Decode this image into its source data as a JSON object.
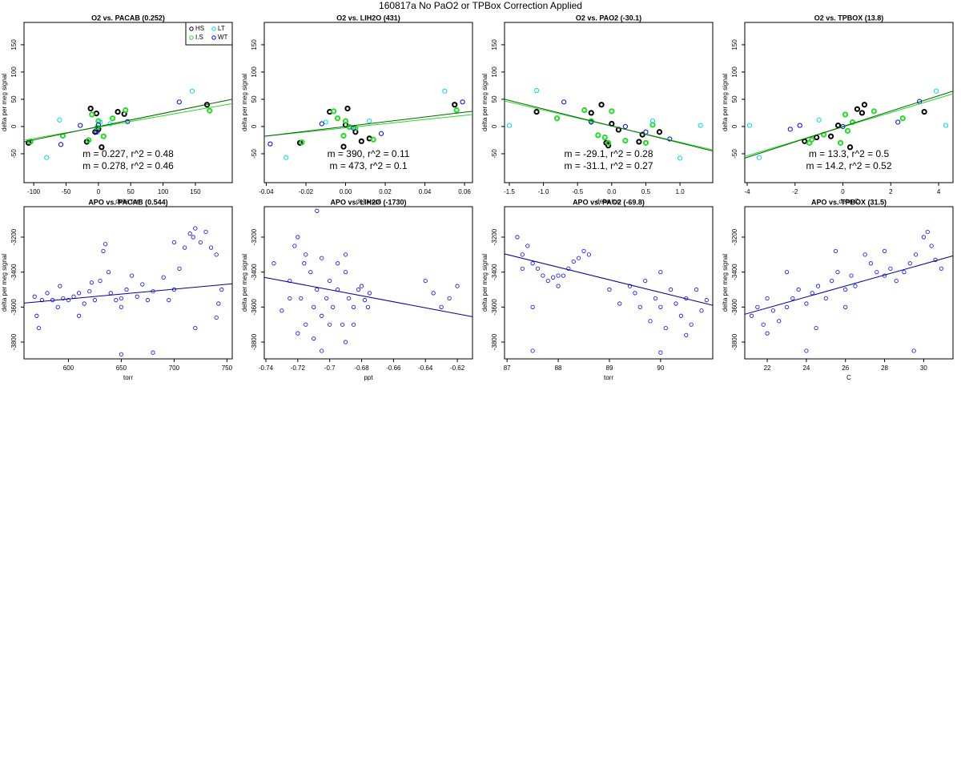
{
  "title": "160817a   No PaO2 or TPBox Correction Applied",
  "chart_data": [
    {
      "type": "scatter",
      "title": "O2 vs. PACAB (0.252)",
      "x_label": "delta torr",
      "y_label": "delta per meg signal",
      "xlim": [
        -115,
        207
      ],
      "ylim": [
        -103,
        191
      ],
      "xticks": [
        -100,
        -50,
        0,
        50,
        100,
        150
      ],
      "yticks": [
        -50,
        0,
        50,
        100,
        150
      ],
      "legend": "top-right",
      "series": [
        {
          "name": "HS",
          "color": "#000000",
          "x": [
            -108,
            -12,
            -3,
            -5,
            5,
            30,
            40,
            168,
            -18,
            0
          ],
          "values": [
            -30,
            33,
            24,
            -10,
            -38,
            27,
            23,
            40,
            -28,
            -5
          ]
        },
        {
          "name": "I.S",
          "color": "#22dd22",
          "x": [
            -105,
            -55,
            -10,
            0,
            -2,
            8,
            22,
            42,
            172,
            -15
          ],
          "values": [
            -28,
            -17,
            22,
            10,
            -2,
            -18,
            15,
            30,
            29,
            -25
          ]
        },
        {
          "name": "LT",
          "color": "#00dddd",
          "x": [
            -60,
            -80,
            3,
            145,
            18
          ],
          "values": [
            12,
            -57,
            8,
            65,
            5
          ]
        },
        {
          "name": "WT",
          "color": "#0000ff",
          "x": [
            -58,
            -28,
            0,
            45,
            125,
            -2
          ],
          "values": [
            -33,
            2,
            3,
            9,
            45,
            -10
          ]
        }
      ],
      "fits": [
        {
          "color": "#22dd22",
          "x": [
            -115,
            207
          ],
          "values": [
            -25,
            42
          ]
        },
        {
          "color": "#006400",
          "x": [
            -115,
            207
          ],
          "values": [
            -28,
            50
          ]
        }
      ],
      "annotations": [
        {
          "text": "m = 0.227, r^2 = 0.48",
          "color": "#22dd22"
        },
        {
          "text": "m = 0.278, r^2 = 0.46",
          "color": "#006400"
        }
      ]
    },
    {
      "type": "scatter",
      "title": "O2 vs. LIH2O (431)",
      "x_label": "delta ppt",
      "y_label": "delta per meg signal",
      "xlim": [
        -0.041,
        0.064
      ],
      "ylim": [
        -103,
        191
      ],
      "xticks": [
        -0.04,
        -0.02,
        {
          "value": 0,
          "label": "0.00"
        },
        0.02,
        0.04,
        0.06
      ],
      "yticks": [
        -50,
        0,
        50,
        100,
        150
      ],
      "series": [
        {
          "color": "#000000",
          "x": [
            -0.023,
            -0.008,
            0.001,
            0.0,
            0.005,
            0.012,
            0.055,
            -0.001,
            0.008
          ],
          "values": [
            -30,
            27,
            33,
            3,
            -10,
            -22,
            40,
            -37,
            -27
          ]
        },
        {
          "color": "#22dd22",
          "x": [
            -0.022,
            -0.006,
            -0.004,
            0.0,
            -0.001,
            0.005,
            0.014,
            0.056,
            0.002
          ],
          "values": [
            -29,
            28,
            15,
            10,
            -17,
            -3,
            -24,
            30,
            -1
          ]
        },
        {
          "color": "#00dddd",
          "x": [
            -0.01,
            -0.03,
            0.012,
            0.05
          ],
          "values": [
            8,
            -57,
            10,
            65
          ]
        },
        {
          "color": "#0000ff",
          "x": [
            -0.038,
            0.004,
            -0.012,
            0.018,
            0.059
          ],
          "values": [
            -32,
            -3,
            5,
            -13,
            45
          ]
        }
      ],
      "fits": [
        {
          "color": "#22dd22",
          "x": [
            -0.041,
            0.064
          ],
          "values": [
            -18,
            22
          ]
        },
        {
          "color": "#006400",
          "x": [
            -0.041,
            0.064
          ],
          "values": [
            -18,
            28
          ]
        }
      ],
      "annotations": [
        {
          "text": "m = 390, r^2 = 0.11",
          "color": "#22dd22"
        },
        {
          "text": "m = 473, r^2 = 0.1",
          "color": "#006400"
        }
      ]
    },
    {
      "type": "scatter",
      "title": "O2 vs. PAO2 (-30.1)",
      "x_label": "delta torr",
      "y_label": "delta per meg signal",
      "xlim": [
        -1.57,
        1.48
      ],
      "ylim": [
        -103,
        191
      ],
      "xticks": [
        -1.5,
        {
          "value": -1,
          "label": "-1.0"
        },
        -0.5,
        {
          "value": 0,
          "label": "0.0"
        },
        0.5,
        {
          "value": 1,
          "label": "1.0"
        }
      ],
      "yticks": [
        -50,
        0,
        50,
        100,
        150
      ],
      "series": [
        {
          "color": "#000000",
          "x": [
            -1.1,
            -0.3,
            -0.15,
            -0.08,
            0.0,
            0.1,
            0.45,
            0.4,
            0.7,
            -0.05
          ],
          "values": [
            27,
            25,
            40,
            -30,
            5,
            -6,
            -15,
            -28,
            -10,
            -35
          ]
        },
        {
          "color": "#22dd22",
          "x": [
            -0.8,
            -0.4,
            -0.3,
            -0.1,
            -0.05,
            0.2,
            0.5,
            0.6,
            -0.2,
            0.0
          ],
          "values": [
            15,
            30,
            10,
            -20,
            -30,
            -26,
            -30,
            3,
            -16,
            28
          ]
        },
        {
          "color": "#00dddd",
          "x": [
            -1.5,
            -1.1,
            0.6,
            1.3,
            1.0
          ],
          "values": [
            2,
            66,
            10,
            2,
            -58
          ]
        },
        {
          "color": "#0000ff",
          "x": [
            -0.7,
            -0.3,
            0.2,
            0.85,
            0.5
          ],
          "values": [
            45,
            8,
            0,
            -23,
            -10
          ]
        }
      ],
      "fits": [
        {
          "color": "#22dd22",
          "x": [
            -1.57,
            1.48
          ],
          "values": [
            47,
            -43
          ]
        },
        {
          "color": "#006400",
          "x": [
            -1.57,
            1.48
          ],
          "values": [
            50,
            -45
          ]
        }
      ],
      "annotations": [
        {
          "text": "m = -29.1, r^2 = 0.28",
          "color": "#22dd22"
        },
        {
          "text": "m = -31.1, r^2 = 0.27",
          "color": "#006400"
        }
      ]
    },
    {
      "type": "scatter",
      "title": "O2 vs. TPBOX (13.8)",
      "x_label": "delta C",
      "y_label": "delta per meg signal",
      "xlim": [
        -4.1,
        4.6
      ],
      "ylim": [
        -103,
        191
      ],
      "xticks": [
        -4,
        -2,
        0,
        2,
        4
      ],
      "yticks": [
        -50,
        0,
        50,
        100,
        150
      ],
      "series": [
        {
          "color": "#000000",
          "x": [
            -1.6,
            -1.1,
            -0.5,
            0.3,
            0.6,
            0.9,
            3.4,
            0.8,
            -0.2
          ],
          "values": [
            -27,
            -20,
            -18,
            -38,
            32,
            40,
            27,
            25,
            2
          ]
        },
        {
          "color": "#22dd22",
          "x": [
            -1.4,
            -0.8,
            -0.1,
            0.2,
            0.4,
            1.3,
            2.5,
            0.1,
            -1.3
          ],
          "values": [
            -30,
            -15,
            -30,
            -8,
            8,
            28,
            15,
            22,
            -24
          ]
        },
        {
          "color": "#00dddd",
          "x": [
            -3.9,
            -3.5,
            -1.0,
            3.9,
            4.3
          ],
          "values": [
            2,
            -57,
            12,
            65,
            2
          ]
        },
        {
          "color": "#0000ff",
          "x": [
            -1.8,
            -2.2,
            0.0,
            2.3,
            3.2
          ],
          "values": [
            2,
            -5,
            0,
            8,
            46
          ]
        }
      ],
      "fits": [
        {
          "color": "#22dd22",
          "x": [
            -4.1,
            4.6
          ],
          "values": [
            -55,
            60
          ]
        },
        {
          "color": "#006400",
          "x": [
            -4.1,
            4.6
          ],
          "values": [
            -58,
            65
          ]
        }
      ],
      "annotations": [
        {
          "text": "m = 13.3, r^2 = 0.5",
          "color": "#22dd22"
        },
        {
          "text": "m = 14.2, r^2 = 0.52",
          "color": "#006400"
        }
      ]
    },
    {
      "type": "scatter",
      "title": "APO vs. PACAB (0.544)",
      "x_label": "torr",
      "y_label": "delta per meg signal",
      "xlim": [
        558,
        755
      ],
      "ylim": [
        -3896,
        -3026
      ],
      "xticks": [
        600,
        650,
        700,
        750
      ],
      "yticks": [
        -3800,
        -3600,
        -3400,
        -3200
      ],
      "color": "#0000ff",
      "x": [
        568,
        570,
        572,
        575,
        580,
        585,
        590,
        592,
        595,
        600,
        605,
        610,
        615,
        620,
        625,
        630,
        633,
        635,
        638,
        640,
        645,
        650,
        655,
        660,
        665,
        670,
        675,
        680,
        690,
        695,
        700,
        705,
        710,
        715,
        718,
        720,
        725,
        730,
        735,
        740,
        742,
        745,
        610,
        650,
        680,
        700,
        720,
        740,
        622,
        650
      ],
      "values": [
        -3540,
        -3650,
        -3720,
        -3560,
        -3520,
        -3560,
        -3600,
        -3480,
        -3550,
        -3560,
        -3540,
        -3520,
        -3580,
        -3510,
        -3560,
        -3450,
        -3280,
        -3240,
        -3400,
        -3520,
        -3560,
        -3550,
        -3500,
        -3420,
        -3540,
        -3470,
        -3560,
        -3510,
        -3430,
        -3560,
        -3500,
        -3380,
        -3260,
        -3180,
        -3200,
        -3150,
        -3230,
        -3170,
        -3260,
        -3300,
        -3580,
        -3500,
        -3650,
        -3870,
        -3860,
        -3230,
        -3720,
        -3660,
        -3460,
        -3600
      ],
      "fits": [
        {
          "color": "#000099",
          "x": [
            558,
            755
          ],
          "values": [
            -3577,
            -3467
          ]
        }
      ]
    },
    {
      "type": "scatter",
      "title": "APO vs. LIH2O (-1730)",
      "x_label": "ppt",
      "y_label": "delta per meg signal",
      "xlim": [
        -0.741,
        -0.6105
      ],
      "ylim": [
        -3896,
        -3026
      ],
      "xticks": [
        -0.74,
        -0.72,
        -0.7,
        -0.68,
        -0.66,
        -0.64,
        -0.62
      ],
      "yticks": [
        -3800,
        -3600,
        -3400,
        -3200
      ],
      "color": "#0000ff",
      "x": [
        -0.735,
        -0.73,
        -0.725,
        -0.722,
        -0.72,
        -0.718,
        -0.715,
        -0.712,
        -0.71,
        -0.708,
        -0.705,
        -0.702,
        -0.7,
        -0.698,
        -0.695,
        -0.692,
        -0.69,
        -0.688,
        -0.685,
        -0.682,
        -0.68,
        -0.678,
        -0.675,
        -0.72,
        -0.71,
        -0.7,
        -0.69,
        -0.715,
        -0.705,
        -0.695,
        -0.685,
        -0.725,
        -0.708,
        -0.69,
        -0.676,
        -0.64,
        -0.635,
        -0.63,
        -0.625,
        -0.62,
        -0.705,
        -0.716
      ],
      "values": [
        -3350,
        -3620,
        -3450,
        -3250,
        -3200,
        -3550,
        -3700,
        -3400,
        -3600,
        -3500,
        -3650,
        -3550,
        -3450,
        -3600,
        -3500,
        -3700,
        -3400,
        -3550,
        -3600,
        -3500,
        -3480,
        -3560,
        -3520,
        -3750,
        -3780,
        -3700,
        -3300,
        -3300,
        -3320,
        -3350,
        -3700,
        -3550,
        -3050,
        -3800,
        -3600,
        -3450,
        -3520,
        -3600,
        -3550,
        -3480,
        -3850,
        -3350
      ],
      "fits": [
        {
          "color": "#000099",
          "x": [
            -0.741,
            -0.6105
          ],
          "values": [
            -3430,
            -3655
          ]
        }
      ]
    },
    {
      "type": "scatter",
      "title": "APO vs. PAO2 (-69.8)",
      "x_label": "torr",
      "y_label": "delta per meg signal",
      "xlim": [
        86.95,
        91.02
      ],
      "ylim": [
        -3896,
        -3026
      ],
      "xticks": [
        87,
        88,
        89,
        90
      ],
      "yticks": [
        -3800,
        -3600,
        -3400,
        -3200
      ],
      "color": "#0000ff",
      "x": [
        87.2,
        87.3,
        87.4,
        87.5,
        87.6,
        87.7,
        87.8,
        87.9,
        88.0,
        88.1,
        88.2,
        88.3,
        88.4,
        88.5,
        88.6,
        87.3,
        87.5,
        88.0,
        89.0,
        89.2,
        89.4,
        89.5,
        89.7,
        89.9,
        90.0,
        90.2,
        90.4,
        90.5,
        90.6,
        90.8,
        90.9,
        89.6,
        89.8,
        90.1,
        90.3,
        90.7,
        90.0,
        90.5,
        87.5,
        90.0
      ],
      "values": [
        -3200,
        -3300,
        -3250,
        -3350,
        -3380,
        -3420,
        -3450,
        -3430,
        -3480,
        -3420,
        -3380,
        -3340,
        -3320,
        -3280,
        -3300,
        -3380,
        -3600,
        -3420,
        -3500,
        -3580,
        -3480,
        -3520,
        -3450,
        -3550,
        -3600,
        -3500,
        -3650,
        -3550,
        -3700,
        -3620,
        -3560,
        -3600,
        -3680,
        -3720,
        -3580,
        -3500,
        -3860,
        -3760,
        -3850,
        -3400
      ],
      "fits": [
        {
          "color": "#000099",
          "x": [
            86.95,
            91.02
          ],
          "values": [
            -3296,
            -3590
          ]
        }
      ]
    },
    {
      "type": "scatter",
      "title": "APO vs. TPBOX (31.5)",
      "x_label": "C",
      "y_label": "delta per meg signal",
      "xlim": [
        20.85,
        31.5
      ],
      "ylim": [
        -3896,
        -3026
      ],
      "xticks": [
        22,
        24,
        26,
        28,
        30
      ],
      "yticks": [
        -3800,
        -3600,
        -3400,
        -3200
      ],
      "color": "#0000ff",
      "x": [
        21.2,
        21.5,
        21.8,
        22.0,
        22.3,
        22.6,
        23.0,
        23.3,
        23.6,
        24.0,
        24.3,
        24.6,
        25.0,
        25.3,
        25.6,
        26.0,
        26.3,
        26.5,
        27.0,
        27.3,
        27.6,
        28.0,
        28.3,
        28.6,
        29.0,
        29.3,
        29.6,
        30.0,
        30.2,
        30.4,
        30.6,
        30.9,
        22.0,
        24.0,
        25.5,
        24.5,
        29.5,
        23.0,
        26.0,
        28.0
      ],
      "values": [
        -3650,
        -3600,
        -3700,
        -3550,
        -3620,
        -3680,
        -3600,
        -3550,
        -3500,
        -3580,
        -3520,
        -3480,
        -3550,
        -3450,
        -3400,
        -3500,
        -3420,
        -3480,
        -3300,
        -3350,
        -3400,
        -3420,
        -3380,
        -3450,
        -3400,
        -3350,
        -3300,
        -3200,
        -3170,
        -3250,
        -3330,
        -3380,
        -3750,
        -3850,
        -3280,
        -3720,
        -3850,
        -3400,
        -3600,
        -3280
      ],
      "fits": [
        {
          "color": "#000099",
          "x": [
            20.85,
            31.5
          ],
          "values": [
            -3641,
            -3307
          ]
        }
      ]
    }
  ]
}
